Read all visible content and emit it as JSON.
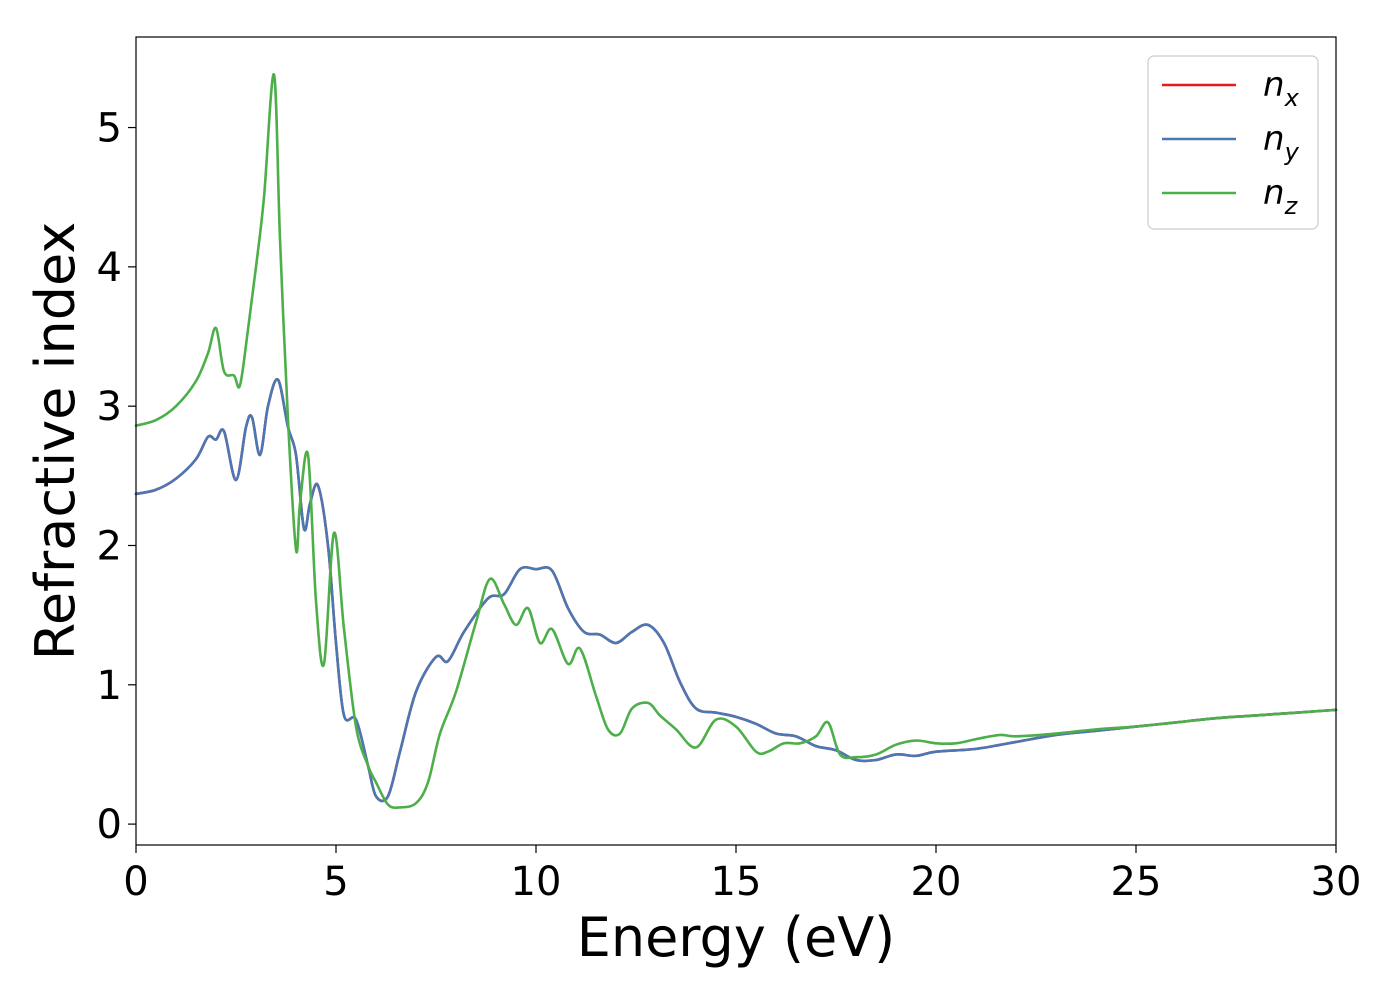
{
  "chart_data": {
    "type": "line",
    "title": "",
    "xlabel": "Energy (eV)",
    "ylabel": "Refractive index",
    "xlim": [
      0,
      30
    ],
    "ylim": [
      -0.15,
      5.65
    ],
    "xticks": [
      0,
      5,
      10,
      15,
      20,
      25,
      30
    ],
    "yticks": [
      0,
      1,
      2,
      3,
      4,
      5
    ],
    "grid": false,
    "legend_position": "top-right",
    "series": [
      {
        "name": "n",
        "subscript": "x",
        "color": "#e41a1c",
        "x": [
          0,
          0.5,
          1.0,
          1.5,
          1.8,
          2.0,
          2.2,
          2.5,
          2.75,
          2.9,
          3.1,
          3.3,
          3.55,
          3.8,
          4.0,
          4.2,
          4.35,
          4.55,
          4.8,
          5.0,
          5.2,
          5.5,
          5.8,
          6.0,
          6.3,
          6.6,
          7.0,
          7.5,
          7.8,
          8.2,
          8.8,
          9.2,
          9.6,
          10.0,
          10.4,
          10.8,
          11.2,
          11.6,
          12.0,
          12.4,
          12.8,
          13.2,
          13.6,
          14.0,
          14.5,
          15.0,
          15.5,
          16.0,
          16.5,
          17.0,
          17.5,
          18.0,
          18.5,
          19.0,
          19.5,
          20.0,
          21.0,
          22.0,
          23.0,
          24.0,
          25.0,
          26.0,
          27.0,
          28.0,
          29.0,
          30.0
        ],
        "y": [
          2.37,
          2.4,
          2.48,
          2.62,
          2.78,
          2.76,
          2.82,
          2.47,
          2.85,
          2.92,
          2.65,
          3.0,
          3.19,
          2.85,
          2.65,
          2.12,
          2.3,
          2.43,
          2.0,
          1.3,
          0.78,
          0.75,
          0.42,
          0.2,
          0.2,
          0.52,
          0.95,
          1.2,
          1.17,
          1.38,
          1.62,
          1.65,
          1.83,
          1.83,
          1.82,
          1.55,
          1.38,
          1.36,
          1.3,
          1.38,
          1.43,
          1.3,
          1.02,
          0.83,
          0.8,
          0.77,
          0.72,
          0.65,
          0.63,
          0.56,
          0.53,
          0.46,
          0.46,
          0.5,
          0.49,
          0.52,
          0.54,
          0.59,
          0.64,
          0.67,
          0.7,
          0.73,
          0.76,
          0.78,
          0.8,
          0.82
        ]
      },
      {
        "name": "n",
        "subscript": "y",
        "color": "#4a78b5",
        "x": [
          0,
          0.5,
          1.0,
          1.5,
          1.8,
          2.0,
          2.2,
          2.5,
          2.75,
          2.9,
          3.1,
          3.3,
          3.55,
          3.8,
          4.0,
          4.2,
          4.35,
          4.55,
          4.8,
          5.0,
          5.2,
          5.5,
          5.8,
          6.0,
          6.3,
          6.6,
          7.0,
          7.5,
          7.8,
          8.2,
          8.8,
          9.2,
          9.6,
          10.0,
          10.4,
          10.8,
          11.2,
          11.6,
          12.0,
          12.4,
          12.8,
          13.2,
          13.6,
          14.0,
          14.5,
          15.0,
          15.5,
          16.0,
          16.5,
          17.0,
          17.5,
          18.0,
          18.5,
          19.0,
          19.5,
          20.0,
          21.0,
          22.0,
          23.0,
          24.0,
          25.0,
          26.0,
          27.0,
          28.0,
          29.0,
          30.0
        ],
        "y": [
          2.37,
          2.4,
          2.48,
          2.62,
          2.78,
          2.76,
          2.82,
          2.47,
          2.85,
          2.92,
          2.65,
          3.0,
          3.19,
          2.85,
          2.65,
          2.12,
          2.3,
          2.43,
          2.0,
          1.3,
          0.78,
          0.75,
          0.42,
          0.2,
          0.2,
          0.52,
          0.95,
          1.2,
          1.17,
          1.38,
          1.62,
          1.65,
          1.83,
          1.83,
          1.82,
          1.55,
          1.38,
          1.36,
          1.3,
          1.38,
          1.43,
          1.3,
          1.02,
          0.83,
          0.8,
          0.77,
          0.72,
          0.65,
          0.63,
          0.56,
          0.53,
          0.46,
          0.46,
          0.5,
          0.49,
          0.52,
          0.54,
          0.59,
          0.64,
          0.67,
          0.7,
          0.73,
          0.76,
          0.78,
          0.8,
          0.82
        ]
      },
      {
        "name": "n",
        "subscript": "z",
        "color": "#4daf4a",
        "x": [
          0,
          0.5,
          1.0,
          1.5,
          1.8,
          2.0,
          2.2,
          2.45,
          2.6,
          2.8,
          3.0,
          3.2,
          3.45,
          3.6,
          3.8,
          4.0,
          4.1,
          4.3,
          4.5,
          4.7,
          4.95,
          5.2,
          5.5,
          5.8,
          6.0,
          6.3,
          6.6,
          7.0,
          7.3,
          7.6,
          8.0,
          8.5,
          8.85,
          9.2,
          9.5,
          9.8,
          10.1,
          10.4,
          10.8,
          11.1,
          11.5,
          11.8,
          12.1,
          12.4,
          12.8,
          13.1,
          13.5,
          14.0,
          14.5,
          15.0,
          15.5,
          15.8,
          16.2,
          16.6,
          17.0,
          17.3,
          17.6,
          18.0,
          18.5,
          19.0,
          19.5,
          20.0,
          20.5,
          21.0,
          21.6,
          22.0,
          23.0,
          24.0,
          25.0,
          26.0,
          27.0,
          28.0,
          29.0,
          30.0
        ],
        "y": [
          2.86,
          2.9,
          3.0,
          3.18,
          3.38,
          3.56,
          3.25,
          3.22,
          3.15,
          3.55,
          4.0,
          4.5,
          5.38,
          4.2,
          2.9,
          1.97,
          2.3,
          2.65,
          1.6,
          1.15,
          2.09,
          1.4,
          0.7,
          0.42,
          0.3,
          0.14,
          0.12,
          0.15,
          0.3,
          0.65,
          0.95,
          1.45,
          1.76,
          1.58,
          1.43,
          1.55,
          1.3,
          1.4,
          1.15,
          1.26,
          0.92,
          0.68,
          0.65,
          0.83,
          0.87,
          0.78,
          0.68,
          0.55,
          0.75,
          0.7,
          0.52,
          0.52,
          0.58,
          0.58,
          0.63,
          0.73,
          0.5,
          0.48,
          0.5,
          0.57,
          0.6,
          0.58,
          0.58,
          0.61,
          0.64,
          0.63,
          0.65,
          0.68,
          0.7,
          0.73,
          0.76,
          0.78,
          0.8,
          0.82
        ]
      }
    ]
  }
}
